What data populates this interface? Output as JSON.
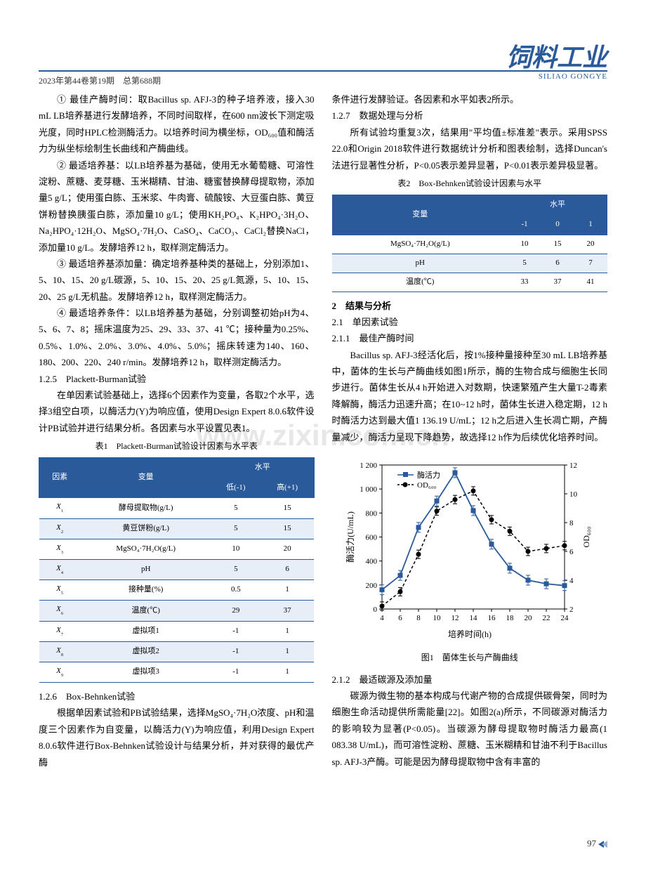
{
  "header": {
    "meta": "2023年第44卷第19期　总第688期",
    "journal_title": "饲料工业",
    "journal_sub": "SILIAO GONGYE"
  },
  "left": {
    "p1": "① 最佳产酶时间：取Bacillus sp. AFJ-3的种子培养液，接入30 mL LB培养基进行发酵培养，不同时间取样，在600 nm波长下测定吸光度，同时HPLC检测酶活力。以培养时间为横坐标，OD₆₀₀值和酶活力为纵坐标绘制生长曲线和产酶曲线。",
    "p2": "② 最适培养基：以LB培养基为基础，使用无水葡萄糖、可溶性淀粉、蔗糖、麦芽糖、玉米糊精、甘油、糖蜜替换酵母提取物，添加量5 g/L；使用蛋白胨、玉米浆、牛肉膏、硫酸铵、大豆蛋白胨、黄豆饼粉替换胰蛋白胨，添加量10 g/L；使用KH₂PO₄、K₂HPO₄·3H₂O、Na₂HPO₄·12H₂O、MgSO₄·7H₂O、CaSO₄、CaCO₃、CaCl₂替换NaCl，添加量10 g/L。发酵培养12 h，取样测定酶活力。",
    "p3": "③ 最适培养基添加量：确定培养基种类的基础上，分别添加1、5、10、15、20 g/L碳源，5、10、15、20、25 g/L氮源，5、10、15、20、25 g/L无机盐。发酵培养12 h，取样测定酶活力。",
    "p4": "④ 最适培养条件：以LB培养基为基础，分别调整初始pH为4、5、6、7、8；摇床温度为25、29、33、37、41 ℃；接种量为0.25%、0.5%、1.0%、2.0%、3.0%、4.0%、5.0%；摇床转速为140、160、180、200、220、240 r/min。发酵培养12 h，取样测定酶活力。",
    "h125": "1.2.5　Plackett-Burman试验",
    "p5": "在单因素试验基础上，选择6个因素作为变量，各取2个水平，选择3组空白项，以酶活力(Y)为响应值，使用Design Expert 8.0.6软件设计PB试验并进行结果分析。各因素与水平设置见表1。",
    "h126": "1.2.6　Box-Behnken试验",
    "p6": "根据单因素试验和PB试验结果，选择MgSO₄·7H₂O浓度、pH和温度三个因素作为自变量，以酶活力(Y)为响应值，利用Design Expert 8.0.6软件进行Box-Behnken试验设计与结果分析，并对获得的最优产酶"
  },
  "right": {
    "p1": "条件进行发酵验证。各因素和水平如表2所示。",
    "h127": "1.2.7　数据处理与分析",
    "p2": "所有试验均重复3次，结果用\"平均值±标准差\"表示。采用SPSS 22.0和Origin 2018软件进行数据统计分析和图表绘制，选择Duncan's法进行显著性分析，P<0.05表示差异显著，P<0.01表示差异极显著。",
    "h2": "2　结果与分析",
    "h21": "2.1　单因素试验",
    "h211": "2.1.1　最佳产酶时间",
    "p3": "Bacillus sp. AFJ-3经活化后，按1%接种量接种至30 mL LB培养基中，菌体的生长与产酶曲线如图1所示，酶的生物合成与细胞生长同步进行。菌体生长从4 h开始进入对数期，快速繁殖产生大量T-2毒素降解酶，酶活力迅速升高；在10~12 h时，菌体生长进入稳定期，12 h时酶活力达到最大值1 136.19 U/mL；12 h之后进入生长凋亡期，产酶量减少，酶活力呈现下降趋势，故选择12 h作为后续优化培养时间。",
    "fig1_caption": "图1　菌体生长与产酶曲线",
    "h212": "2.1.2　最适碳源及添加量",
    "p4": "碳源为微生物的基本构成与代谢产物的合成提供碳骨架，同时为细胞生命活动提供所需能量[22]。如图2(a)所示，不同碳源对酶活力的影响较为显著(P<0.05)。当碳源为酵母提取物时酶活力最高(1 083.38 U/mL)，而可溶性淀粉、蔗糖、玉米糊精和甘油不利于Bacillus sp. AFJ-3产酶。可能是因为酵母提取物中含有丰富的"
  },
  "table1": {
    "caption": "表1　Plackett-Burman试验设计因素与水平表",
    "headers": [
      "因素",
      "变量",
      "水平"
    ],
    "subheaders": [
      "低(-1)",
      "高(+1)"
    ],
    "rows": [
      [
        "X₁",
        "酵母提取物(g/L)",
        "5",
        "15"
      ],
      [
        "X₂",
        "黄豆饼粉(g/L)",
        "5",
        "15"
      ],
      [
        "X₃",
        "MgSO₄·7H₂O(g/L)",
        "10",
        "20"
      ],
      [
        "X₄",
        "pH",
        "5",
        "6"
      ],
      [
        "X₅",
        "接种量(%)",
        "0.5",
        "1"
      ],
      [
        "X₆",
        "温度(℃)",
        "29",
        "37"
      ],
      [
        "X₇",
        "虚拟项1",
        "-1",
        "1"
      ],
      [
        "X₈",
        "虚拟项2",
        "-1",
        "1"
      ],
      [
        "X₉",
        "虚拟项3",
        "-1",
        "1"
      ]
    ]
  },
  "table2": {
    "caption": "表2　Box-Behnken试验设计因素与水平",
    "headers": [
      "变量",
      "水平"
    ],
    "subheaders": [
      "-1",
      "0",
      "1"
    ],
    "rows": [
      [
        "MgSO₄·7H₂O(g/L)",
        "10",
        "15",
        "20"
      ],
      [
        "pH",
        "5",
        "6",
        "7"
      ],
      [
        "温度(℃)",
        "33",
        "37",
        "41"
      ]
    ]
  },
  "chart": {
    "type": "line-dual-axis",
    "x_label": "培养时间(h)",
    "y_left_label": "酶活力(U/mL)",
    "y_right_label": "OD₆₀₀",
    "legend": [
      "酶活力",
      "OD₆₀₀"
    ],
    "x": [
      4,
      6,
      8,
      10,
      12,
      14,
      16,
      18,
      20,
      22,
      24
    ],
    "enzyme": [
      160,
      280,
      680,
      900,
      1136,
      820,
      540,
      340,
      240,
      210,
      195
    ],
    "od": [
      2.2,
      3.2,
      5.8,
      8.8,
      9.6,
      10.2,
      8.2,
      7.4,
      6.0,
      6.2,
      6.4
    ],
    "y_left_lim": [
      0,
      1200
    ],
    "y_left_ticks": [
      0,
      200,
      400,
      600,
      800,
      1000,
      1200
    ],
    "y_right_lim": [
      2,
      12
    ],
    "y_right_ticks": [
      2,
      4,
      6,
      8,
      10,
      12
    ],
    "x_ticks": [
      4,
      6,
      8,
      10,
      12,
      14,
      16,
      18,
      20,
      22,
      24
    ],
    "series_colors": [
      "#2a5a9a",
      "#000000"
    ],
    "series_markers": [
      "square",
      "circle"
    ],
    "line_styles": [
      "solid",
      "dashed"
    ],
    "background": "#ffffff",
    "legend_pos": "top-left",
    "font_size": 11
  },
  "watermark": "www.zixin.com.cn",
  "page": "97"
}
